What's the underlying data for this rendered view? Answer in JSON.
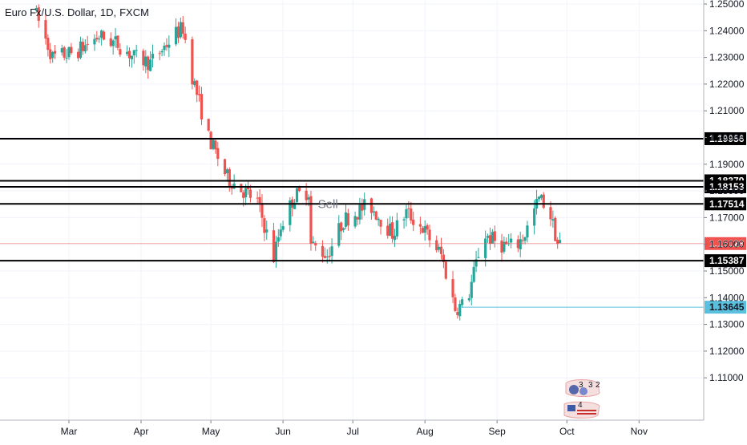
{
  "title": {
    "symbol": "Euro Fx/U.S. Dollar",
    "interval": "1D",
    "source": "FXCM",
    "separator": ", "
  },
  "colors": {
    "up": "#26a69a",
    "down": "#ef5350",
    "grid": "#f0f3fa",
    "axis": "#787b86",
    "level_line": "#000000",
    "level_tag_bg": "#000000",
    "level_tag_text": "#ffffff",
    "current_price": "#ef5350",
    "blue_line": "#5bc0de"
  },
  "annotation": {
    "text": "Sell",
    "date": "2018-06-16",
    "price": 1.1745
  },
  "chart_data": {
    "type": "candlestick",
    "title": "Euro Fx/U.S. Dollar, 1D, FXCM",
    "x_ticks": [
      {
        "label": "Mar",
        "date": "2018-03-01"
      },
      {
        "label": "Apr",
        "date": "2018-04-01"
      },
      {
        "label": "May",
        "date": "2018-05-01"
      },
      {
        "label": "Jun",
        "date": "2018-06-01"
      },
      {
        "label": "Jul",
        "date": "2018-07-01"
      },
      {
        "label": "Aug",
        "date": "2018-08-01"
      },
      {
        "label": "Sep",
        "date": "2018-09-01"
      },
      {
        "label": "Oct",
        "date": "2018-10-01"
      },
      {
        "label": "Nov",
        "date": "2018-11-01"
      }
    ],
    "y_ticks": [
      "1.25000",
      "1.24000",
      "1.23000",
      "1.22000",
      "1.21000",
      "1.20000",
      "1.19000",
      "1.18000",
      "1.17000",
      "1.16000",
      "1.15000",
      "1.14000",
      "1.13000",
      "1.12000",
      "1.11000"
    ],
    "ylim": [
      1.1,
      1.2515
    ],
    "horizontal_levels": [
      {
        "label": "1.19956",
        "value": 1.19956
      },
      {
        "label": "1.18379",
        "value": 1.18379
      },
      {
        "label": "1.18153",
        "value": 1.18153
      },
      {
        "label": "1.17514",
        "value": 1.17514
      },
      {
        "label": "1.15387",
        "value": 1.15387
      }
    ],
    "current_price": {
      "label": "1.16028",
      "value": 1.16028
    },
    "ray_level": {
      "label": "1.13645",
      "value": 1.13645,
      "start_date": "2018-08-17"
    },
    "anchors": [
      [
        "2018-02-15",
        1.248
      ],
      [
        "2018-02-23",
        1.23
      ],
      [
        "2018-03-05",
        1.232
      ],
      [
        "2018-03-15",
        1.238
      ],
      [
        "2018-03-23",
        1.235
      ],
      [
        "2018-03-30",
        1.23
      ],
      [
        "2018-04-06",
        1.228
      ],
      [
        "2018-04-17",
        1.239
      ],
      [
        "2018-04-20",
        1.241
      ],
      [
        "2018-04-24",
        1.223
      ],
      [
        "2018-05-01",
        1.2
      ],
      [
        "2018-05-09",
        1.185
      ],
      [
        "2018-05-16",
        1.18
      ],
      [
        "2018-05-22",
        1.176
      ],
      [
        "2018-05-29",
        1.155
      ],
      [
        "2018-06-01",
        1.167
      ],
      [
        "2018-06-07",
        1.178
      ],
      [
        "2018-06-13",
        1.18
      ],
      [
        "2018-06-14",
        1.16
      ],
      [
        "2018-06-21",
        1.156
      ],
      [
        "2018-06-28",
        1.169
      ],
      [
        "2018-07-09",
        1.175
      ],
      [
        "2018-07-19",
        1.164
      ],
      [
        "2018-07-25",
        1.172
      ],
      [
        "2018-08-01",
        1.166
      ],
      [
        "2018-08-09",
        1.156
      ],
      [
        "2018-08-15",
        1.136
      ],
      [
        "2018-08-20",
        1.138
      ],
      [
        "2018-08-27",
        1.164
      ],
      [
        "2018-09-03",
        1.16
      ],
      [
        "2018-09-10",
        1.159
      ],
      [
        "2018-09-14",
        1.164
      ],
      [
        "2018-09-20",
        1.177
      ],
      [
        "2018-09-24",
        1.174
      ],
      [
        "2018-09-27",
        1.164
      ],
      [
        "2018-09-28",
        1.1603
      ]
    ],
    "last_date": "2018-09-28"
  }
}
